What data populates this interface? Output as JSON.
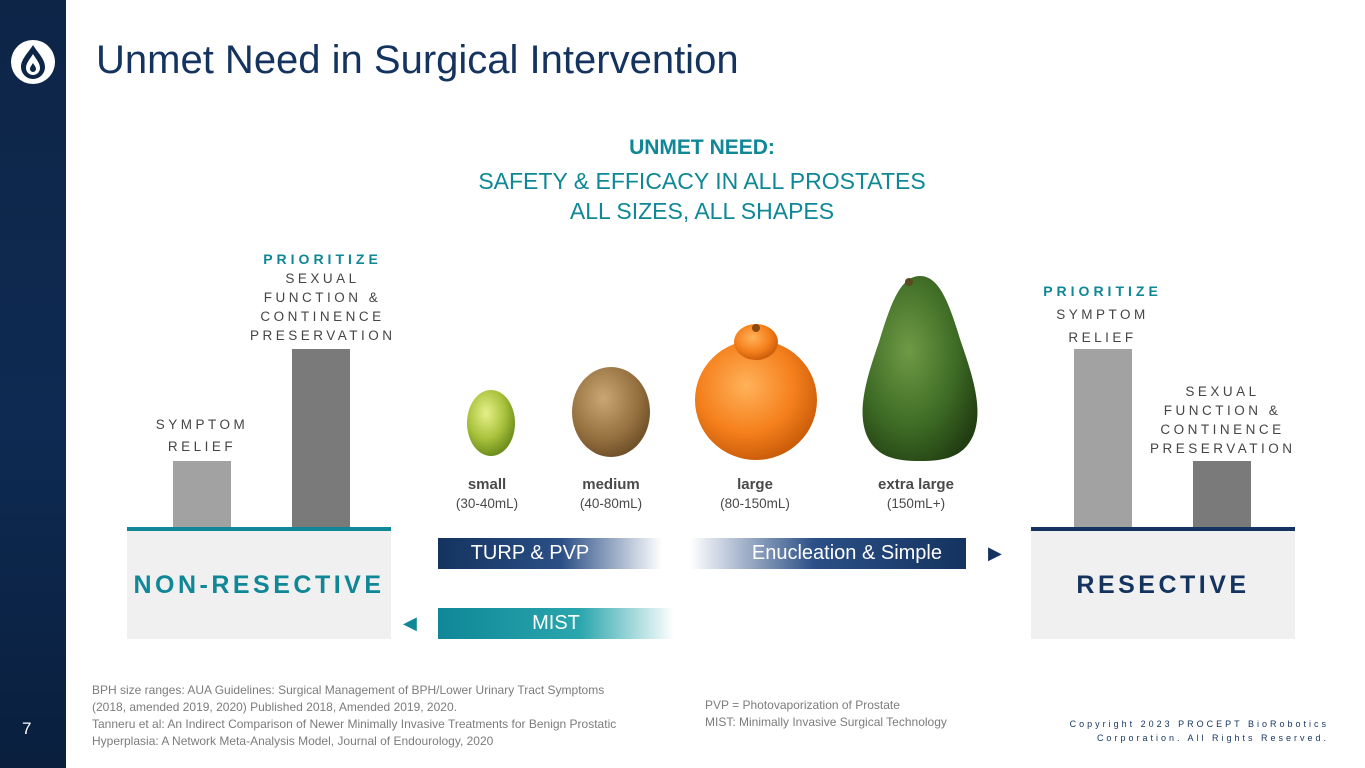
{
  "page": {
    "title": "Unmet Need in Surgical Intervention",
    "page_number": "7"
  },
  "unmet_need": {
    "heading": "UNMET NEED:",
    "line1": "SAFETY & EFFICACY IN ALL PROSTATES",
    "line2": "ALL SIZES, ALL SHAPES"
  },
  "left_side": {
    "prioritize": "PRIORITIZE",
    "priority_lines": [
      "SEXUAL",
      "FUNCTION &",
      "CONTINENCE",
      "PRESERVATION"
    ],
    "short_bar_lines": [
      "SYMPTOM",
      "RELIEF"
    ],
    "panel_label": "NON-RESECTIVE"
  },
  "right_side": {
    "prioritize": "PRIORITIZE",
    "priority_lines": [
      "SYMPTOM",
      "RELIEF"
    ],
    "short_bar_lines": [
      "SEXUAL",
      "FUNCTION &",
      "CONTINENCE",
      "PRESERVATION"
    ],
    "panel_label": "RESECTIVE"
  },
  "fruits": [
    {
      "name": "small",
      "size": "(30-40mL)",
      "icon": "grape-icon"
    },
    {
      "name": "medium",
      "size": "(40-80mL)",
      "icon": "kiwi-icon"
    },
    {
      "name": "large",
      "size": "(80-150mL)",
      "icon": "orange-icon"
    },
    {
      "name": "extra large",
      "size": "(150mL+)",
      "icon": "avocado-icon"
    }
  ],
  "bands": {
    "turp": "TURP & PVP",
    "enucleation": "Enucleation & Simple",
    "mist": "MIST",
    "right_arrow": "▶",
    "left_arrow": "◀"
  },
  "footnotes": {
    "refs": [
      "BPH size ranges: AUA Guidelines: Surgical Management of BPH/Lower Urinary Tract Symptoms",
      "(2018, amended 2019, 2020) Published 2018, Amended 2019, 2020.",
      "Tanneru et al: An Indirect Comparison of Newer Minimally Invasive Treatments for Benign Prostatic",
      "Hyperplasia: A Network Meta-Analysis Model, Journal of Endourology, 2020"
    ],
    "abbrev": [
      "PVP = Photovaporization of Prostate",
      "MIST: Minimally Invasive Surgical Technology"
    ],
    "copyright": [
      "Copyright 2023 PROCEPT BioRobotics",
      "Corporation. All Rights Reserved."
    ]
  },
  "colors": {
    "navy": "#14335f",
    "teal": "#0f8797",
    "panel_gray": "#f0f0f0"
  }
}
